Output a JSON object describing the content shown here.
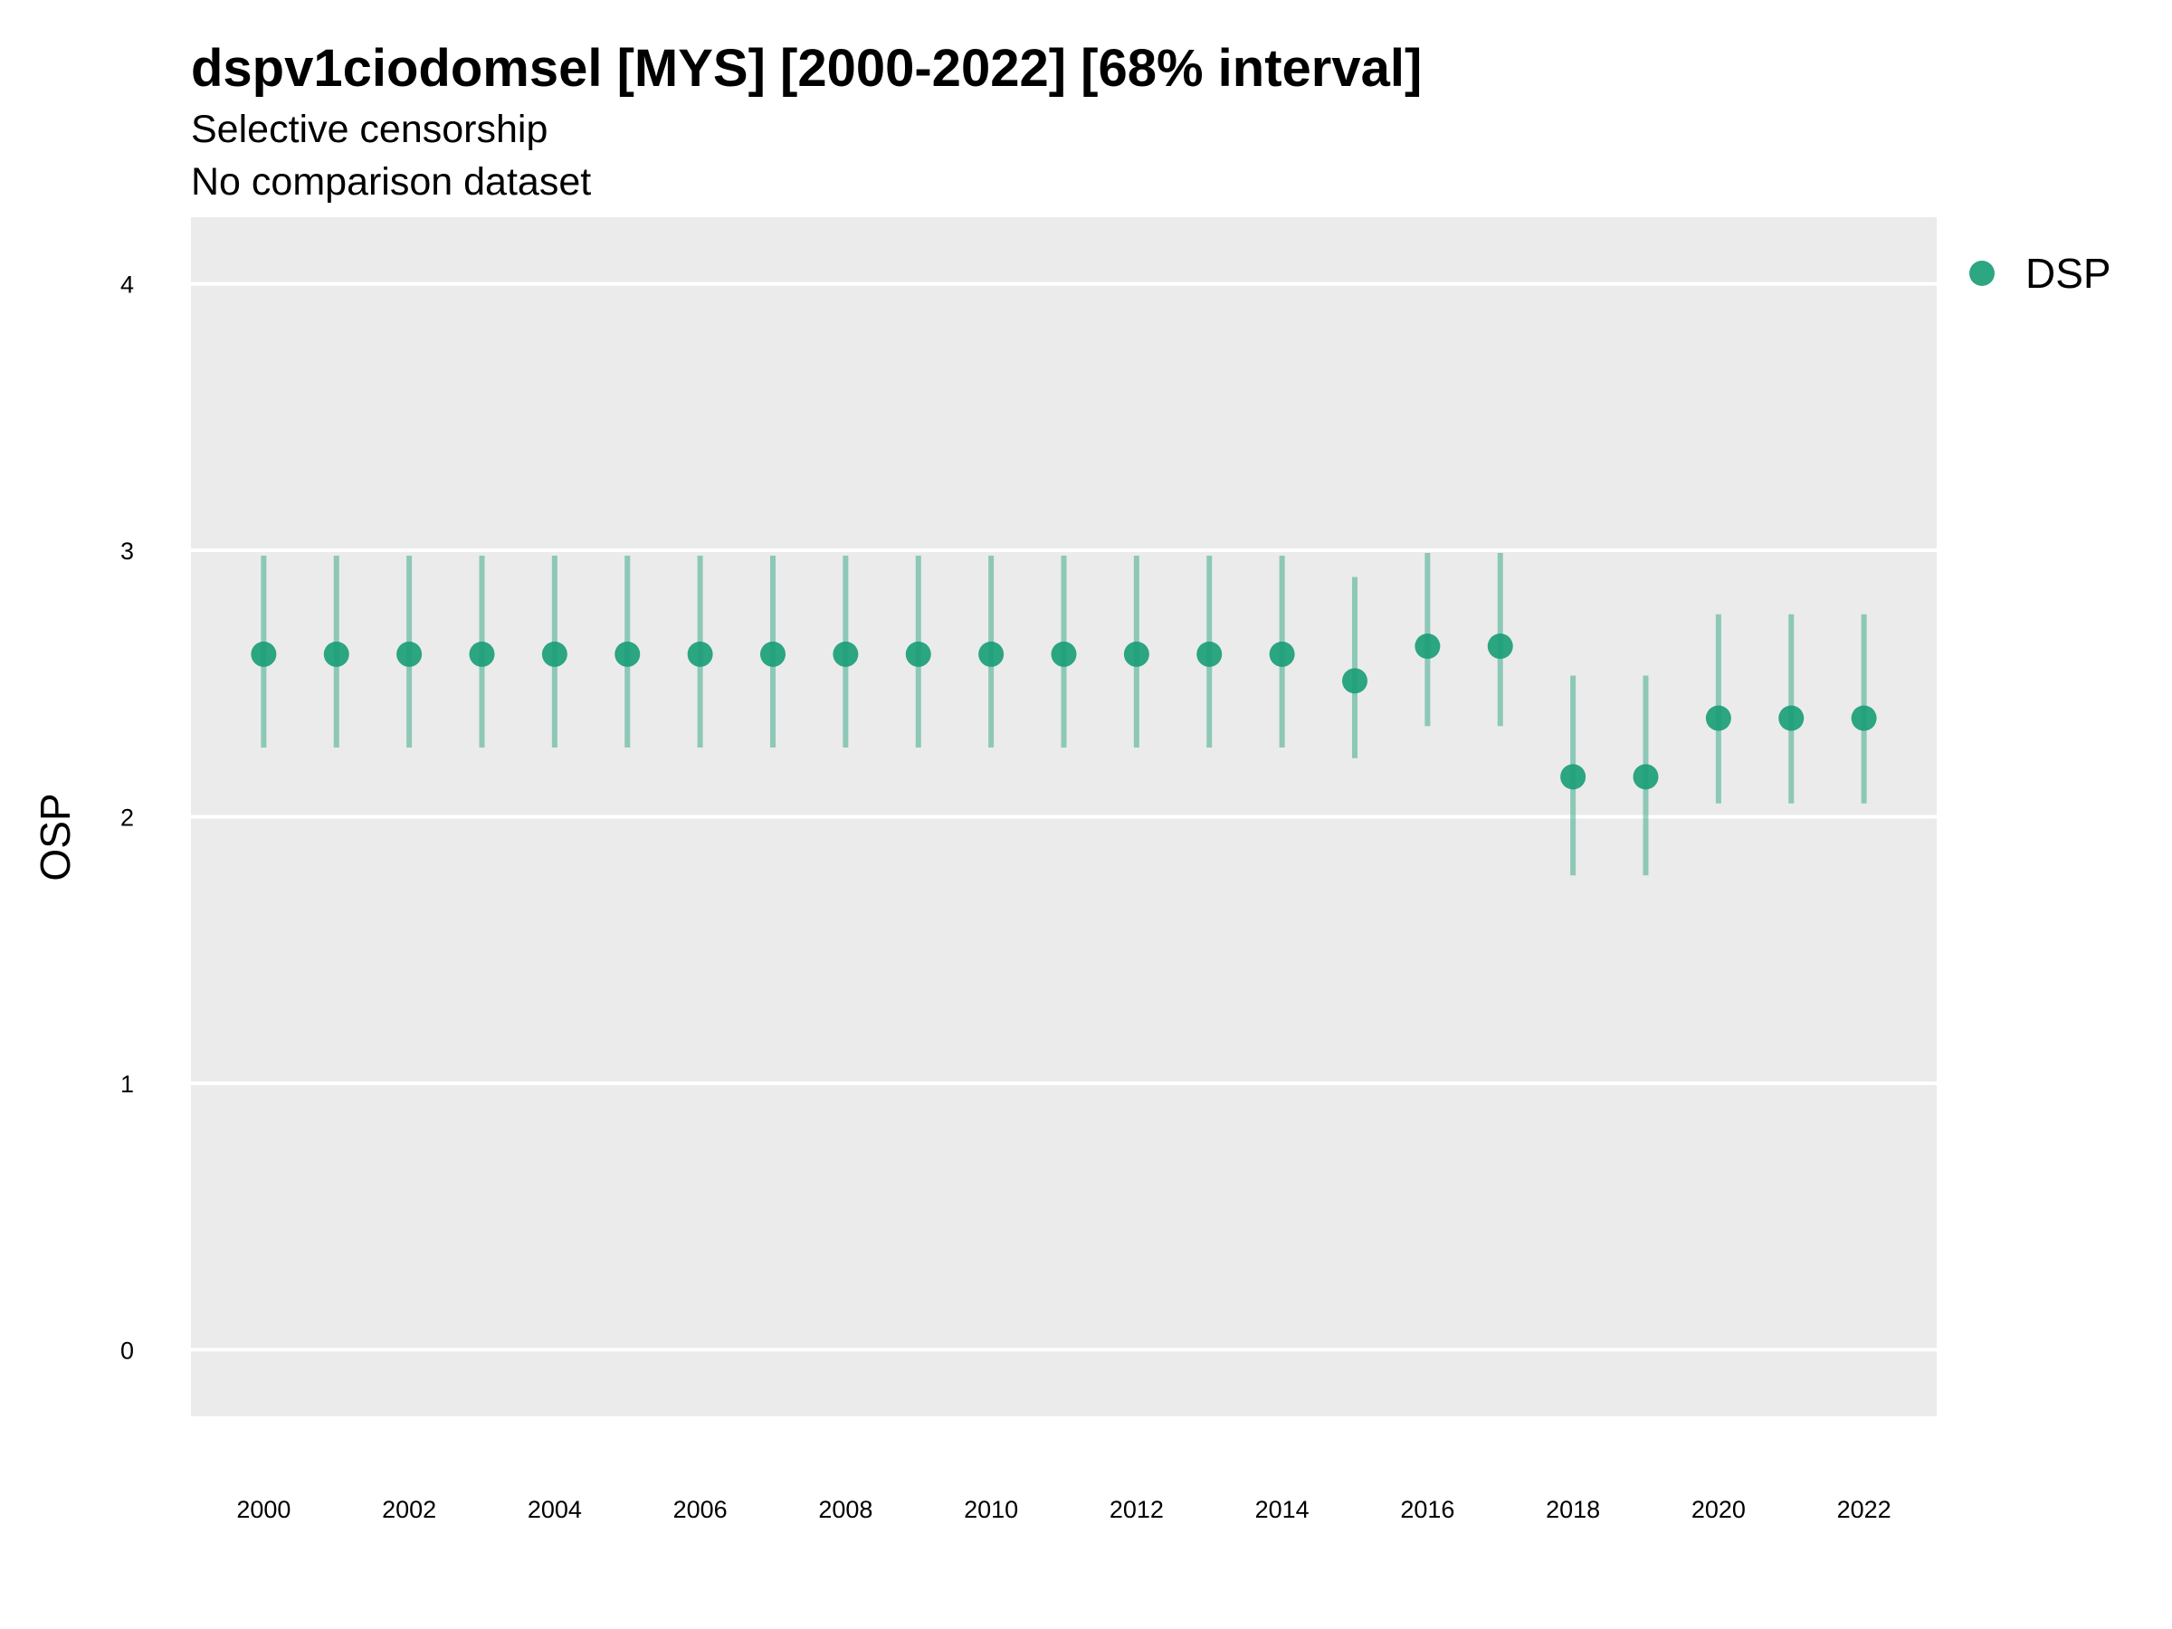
{
  "chart_data": {
    "type": "scatter",
    "title": "dspv1ciodomsel [MYS] [2000-2022] [68% interval]",
    "subtitle": "Selective censorship",
    "subtitle2": "No comparison dataset",
    "xlabel": "",
    "ylabel": "OSP",
    "xlim": [
      1999,
      2023
    ],
    "ylim": [
      -0.25,
      4.25
    ],
    "x_ticks": [
      2000,
      2002,
      2004,
      2006,
      2008,
      2010,
      2012,
      2014,
      2016,
      2018,
      2020,
      2022
    ],
    "y_ticks": [
      0,
      1,
      2,
      3,
      4
    ],
    "grid": true,
    "legend": "right",
    "series": [
      {
        "name": "DSP",
        "color": "#1b9e77",
        "x": [
          2000,
          2001,
          2002,
          2003,
          2004,
          2005,
          2006,
          2007,
          2008,
          2009,
          2010,
          2011,
          2012,
          2013,
          2014,
          2015,
          2016,
          2017,
          2018,
          2019,
          2020,
          2021,
          2022
        ],
        "y": [
          2.61,
          2.61,
          2.61,
          2.61,
          2.61,
          2.61,
          2.61,
          2.61,
          2.61,
          2.61,
          2.61,
          2.61,
          2.61,
          2.61,
          2.61,
          2.51,
          2.64,
          2.64,
          2.15,
          2.15,
          2.37,
          2.37,
          2.37
        ],
        "lower": [
          2.26,
          2.26,
          2.26,
          2.26,
          2.26,
          2.26,
          2.26,
          2.26,
          2.26,
          2.26,
          2.26,
          2.26,
          2.26,
          2.26,
          2.26,
          2.22,
          2.34,
          2.34,
          1.78,
          1.78,
          2.05,
          2.05,
          2.05
        ],
        "upper": [
          2.98,
          2.98,
          2.98,
          2.98,
          2.98,
          2.98,
          2.98,
          2.98,
          2.98,
          2.98,
          2.98,
          2.98,
          2.98,
          2.98,
          2.98,
          2.9,
          2.99,
          2.99,
          2.53,
          2.53,
          2.76,
          2.76,
          2.76
        ]
      }
    ]
  }
}
